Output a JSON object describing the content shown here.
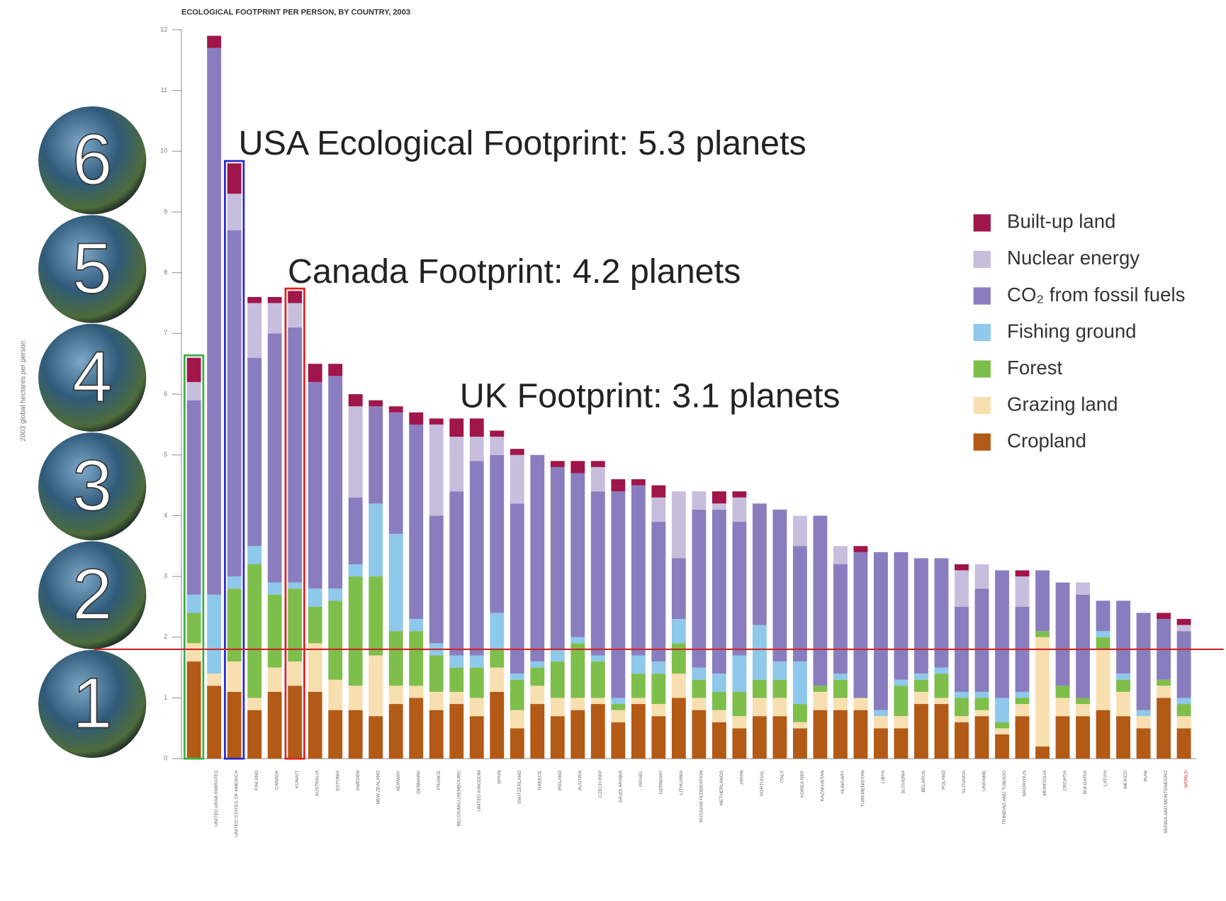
{
  "chart_data": {
    "type": "stacked_bar",
    "title": "ECOLOGICAL FOOTPRINT PER PERSON, BY COUNTRY, 2003",
    "y_label": "2003 global hectares per person",
    "annotations": [
      "USA Ecological Footprint: 5.3 planets",
      "Canada Footprint: 4.2 planets",
      "UK Footprint: 3.1 planets"
    ],
    "planets": [
      6,
      5,
      4,
      3,
      2,
      1
    ],
    "reference_line": 1.8,
    "highlights": [
      {
        "index": 0,
        "color": "#3cb043"
      },
      {
        "index": 2,
        "color": "#2a2ad0"
      },
      {
        "index": 5,
        "color": "#e02020"
      }
    ],
    "legend": "right",
    "ylim": [
      0,
      12
    ],
    "yticks": [
      0,
      1,
      2,
      3,
      4,
      5,
      6,
      7,
      8,
      9,
      10,
      11,
      12
    ],
    "categories": [
      null,
      "UNITED ARAB EMIRATES",
      "UNITED STATES OF AMERICA",
      "FINLAND",
      "CANADA",
      "KUWAIT",
      "AUSTRALIA",
      "ESTONIA",
      "SWEDEN",
      "NEW ZEALAND",
      "NORWAY",
      "DENMARK",
      "FRANCE",
      "BELGIUM/LUXEMBOURG",
      "UNITED KINGDOM",
      "SPAIN",
      "SWITZERLAND",
      "GREECE",
      "IRELAND",
      "AUSTRIA",
      "CZECH REP",
      "SAUDI ARABIA",
      "ISRAEL",
      "GERMANY",
      "LITHUANIA",
      "RUSSIAN FEDERATION",
      "NETHERLANDS",
      "JAPAN",
      "PORTUGAL",
      "ITALY",
      "KOREA REP",
      "KAZAKHSTAN",
      "HUNGARY",
      "TURKMENISTAN",
      "LIBYA",
      "SLOVENIA",
      "BELARUS",
      "POLAND",
      "SLOVAKIA",
      "UKRAINE",
      "TRINIDAD AND TOBAGO",
      "MAURITIUS",
      "MONGOLIA",
      "CROATIA",
      "BULGARIA",
      "LATVIA",
      "MEXICO",
      "IRAN",
      "SERBIA AND MONTENEGRO",
      "WORLD"
    ],
    "series": [
      {
        "name": "Cropland",
        "color": "#b35a17",
        "values": [
          1.6,
          1.2,
          1.1,
          0.8,
          1.1,
          1.2,
          1.1,
          0.8,
          0.8,
          0.7,
          0.9,
          1.0,
          0.8,
          0.9,
          0.7,
          1.1,
          0.5,
          0.9,
          0.7,
          0.8,
          0.9,
          0.6,
          0.9,
          0.7,
          1.0,
          0.8,
          0.6,
          0.5,
          0.7,
          0.7,
          0.5,
          0.8,
          0.8,
          0.8,
          0.5,
          0.5,
          0.9,
          0.9,
          0.6,
          0.7,
          0.4,
          0.7,
          0.2,
          0.7,
          0.7,
          0.8,
          0.7,
          0.5,
          1.0,
          0.5
        ]
      },
      {
        "name": "Grazing land",
        "color": "#f8dfb0",
        "values": [
          0.3,
          0.2,
          0.5,
          0.2,
          0.4,
          0.4,
          0.8,
          0.5,
          0.4,
          1.0,
          0.3,
          0.2,
          0.3,
          0.2,
          0.3,
          0.4,
          0.3,
          0.3,
          0.3,
          0.2,
          0.1,
          0.2,
          0.1,
          0.2,
          0.4,
          0.2,
          0.2,
          0.2,
          0.3,
          0.3,
          0.1,
          0.3,
          0.2,
          0.2,
          0.2,
          0.2,
          0.2,
          0.1,
          0.1,
          0.1,
          0.1,
          0.2,
          1.8,
          0.3,
          0.2,
          1.0,
          0.4,
          0.2,
          0.2,
          0.2
        ]
      },
      {
        "name": "Forest",
        "color": "#7ebe4b",
        "values": [
          0.5,
          0,
          1.2,
          2.2,
          1.2,
          1.2,
          0.6,
          1.3,
          1.8,
          1.3,
          0.9,
          0.9,
          0.6,
          0.4,
          0.5,
          0.3,
          0.5,
          0.3,
          0.6,
          0.9,
          0.6,
          0.1,
          0.4,
          0.5,
          0.5,
          0.3,
          0.3,
          0.4,
          0.3,
          0.3,
          0.3,
          0.1,
          0.3,
          0,
          0,
          0.5,
          0.2,
          0.4,
          0.3,
          0.2,
          0.1,
          0.1,
          0.1,
          0.2,
          0.1,
          0.2,
          0.2,
          0,
          0.1,
          0.2
        ]
      },
      {
        "name": "Fishing ground",
        "color": "#8ec8ea",
        "values": [
          0.3,
          1.3,
          0.2,
          0.3,
          0.2,
          0.1,
          0.3,
          0.2,
          0.2,
          1.2,
          1.6,
          0.2,
          0.2,
          0.2,
          0.2,
          0.6,
          0.1,
          0.1,
          0.2,
          0.1,
          0.1,
          0.1,
          0.3,
          0.2,
          0.4,
          0.2,
          0.3,
          0.6,
          0.9,
          0.3,
          0.7,
          0,
          0.1,
          0,
          0.1,
          0.1,
          0.1,
          0.1,
          0.1,
          0.1,
          0.4,
          0.1,
          0,
          0,
          0,
          0.1,
          0.1,
          0.1,
          0,
          0.1
        ]
      },
      {
        "name": "CO₂ from fossil fuels",
        "color": "#8a7dbf",
        "values": [
          3.2,
          9.0,
          5.7,
          3.1,
          4.1,
          4.2,
          3.4,
          3.5,
          1.1,
          1.6,
          2.0,
          3.2,
          2.1,
          2.7,
          3.2,
          2.6,
          2.8,
          3.4,
          3.0,
          2.7,
          2.7,
          3.4,
          2.8,
          2.3,
          1.0,
          2.6,
          2.7,
          2.2,
          2.0,
          2.5,
          1.9,
          2.8,
          1.8,
          2.4,
          2.6,
          2.1,
          1.9,
          1.8,
          1.4,
          1.7,
          2.1,
          1.4,
          1.0,
          1.7,
          1.7,
          0.5,
          1.2,
          1.6,
          1.0,
          1.1
        ]
      },
      {
        "name": "Nuclear energy",
        "color": "#c7bedd",
        "values": [
          0.3,
          0,
          0.6,
          0.9,
          0.5,
          0.4,
          0,
          0,
          1.5,
          0,
          0,
          0,
          1.5,
          0.9,
          0.4,
          0.3,
          0.8,
          0,
          0,
          0,
          0.4,
          0,
          0,
          0.4,
          1.1,
          0.3,
          0.1,
          0.4,
          0,
          0,
          0.5,
          0,
          0.3,
          0,
          0,
          0,
          0,
          0,
          0.6,
          0.4,
          0,
          0.5,
          0,
          0,
          0.2,
          0,
          0,
          0,
          0,
          0.1
        ]
      },
      {
        "name": "Built-up land",
        "color": "#a0154a",
        "values": [
          0.4,
          0.2,
          0.5,
          0.1,
          0.1,
          0.2,
          0.3,
          0.2,
          0.2,
          0.1,
          0.1,
          0.2,
          0.1,
          0.3,
          0.3,
          0.1,
          0.1,
          0,
          0.1,
          0.2,
          0.1,
          0.2,
          0.1,
          0.2,
          0,
          0,
          0.2,
          0.1,
          0,
          0,
          0,
          0,
          0,
          0.1,
          0,
          0,
          0,
          0,
          0.1,
          0,
          0,
          0.1,
          0,
          0,
          0,
          0,
          0,
          0,
          0.1,
          0.1
        ]
      }
    ]
  }
}
